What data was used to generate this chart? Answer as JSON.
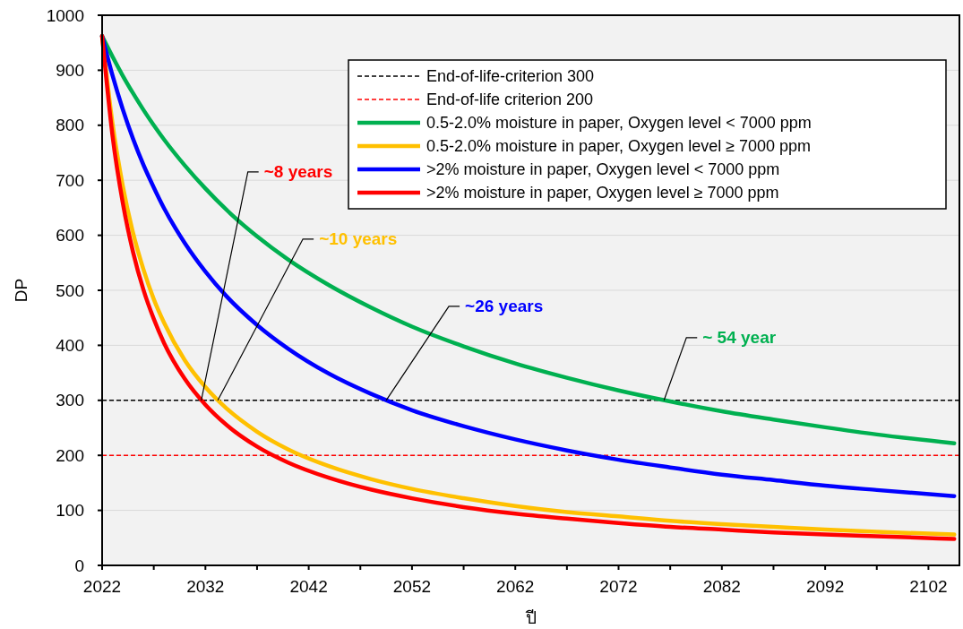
{
  "chart_data": {
    "type": "line",
    "xlabel": "ปี",
    "ylabel": "DP",
    "x": [
      2022,
      2023,
      2024,
      2025,
      2026,
      2027,
      2028,
      2030,
      2032,
      2034,
      2037,
      2040,
      2044,
      2048,
      2052,
      2057,
      2062,
      2067,
      2072,
      2077,
      2082,
      2087,
      2092,
      2097,
      2104.5
    ],
    "series": [
      {
        "name": "0.5-2.0% moisture in paper, Oxygen level < 7000 ppm",
        "color": "#00b050",
        "values": [
          962,
          925,
          890,
          858,
          828,
          800,
          774,
          727,
          685,
          647,
          598,
          556,
          509,
          469,
          434,
          398,
          367,
          341,
          318,
          298,
          280,
          265,
          251,
          238,
          222
        ]
      },
      {
        "name": "0.5-2.0% moisture in paper, Oxygen level ≥ 7000 ppm",
        "color": "#ffc000",
        "values": [
          962,
          804,
          690,
          604,
          538,
          484,
          441,
          373,
          324,
          286,
          243,
          211,
          180,
          157,
          139,
          122,
          108,
          97,
          89,
          81,
          75,
          70,
          65,
          61,
          56
        ]
      },
      {
        "name": ">2% moisture in paper, Oxygen level < 7000 ppm",
        "color": "#0000ff",
        "values": [
          962,
          891,
          829,
          775,
          728,
          687,
          649,
          586,
          534,
          490,
          437,
          394,
          348,
          312,
          282,
          253,
          229,
          209,
          192,
          178,
          165,
          155,
          145,
          137,
          126
        ]
      },
      {
        "name": ">2% moisture in paper, Oxygen level ≥ 7000 ppm",
        "color": "#ff0000",
        "values": [
          962,
          782,
          659,
          569,
          501,
          448,
          404,
          339,
          292,
          256,
          216,
          187,
          159,
          138,
          122,
          106,
          94,
          85,
          77,
          70,
          65,
          60,
          56,
          53,
          48
        ]
      }
    ],
    "ref_lines": [
      {
        "axis": "y",
        "value": 300,
        "label": "End-of-life-criterion 300",
        "color": "#000000",
        "line_style": "dashed"
      },
      {
        "axis": "y",
        "value": 200,
        "label": "End-of-life criterion 200",
        "color": "#ff0000",
        "line_style": "dashed"
      }
    ],
    "annotations": [
      {
        "text": "~8 years",
        "x": 2031.6,
        "y": 300
      },
      {
        "text": "~10 years",
        "x": 2033.2,
        "y": 300
      },
      {
        "text": "~26 years",
        "x": 2049.5,
        "y": 300
      },
      {
        "text": "~ 54 year",
        "x": 2076.4,
        "y": 300
      }
    ],
    "xlim": [
      2022,
      2105
    ],
    "xticks": [
      2022,
      {
        "value": 2027,
        "label": null
      },
      2032,
      {
        "value": 2037,
        "label": null
      },
      2042,
      {
        "value": 2047,
        "label": null
      },
      2052,
      {
        "value": 2057,
        "label": null
      },
      2062,
      {
        "value": 2067,
        "label": null
      },
      2072,
      {
        "value": 2077,
        "label": null
      },
      2082,
      {
        "value": 2087,
        "label": null
      },
      2092,
      {
        "value": 2097,
        "label": null
      },
      2102
    ],
    "ylim": [
      0,
      1000
    ],
    "yticks": [
      0,
      100,
      200,
      300,
      400,
      500,
      600,
      700,
      800,
      900,
      1000
    ],
    "grid": "y",
    "legend": "top right",
    "marker": "none",
    "line_style": "solid"
  }
}
